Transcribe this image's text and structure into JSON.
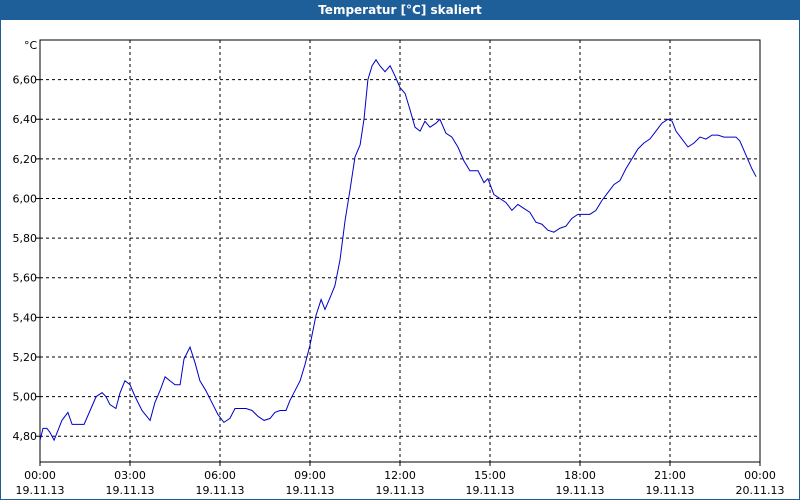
{
  "chart_data": {
    "type": "line",
    "title": "Temperatur [°C] skaliert",
    "y_label": "°C",
    "xlim": [
      0,
      24
    ],
    "ylim": [
      4.67,
      6.8
    ],
    "grid": true,
    "xticks": [
      {
        "value": 0,
        "label": "00:00",
        "date": "19.11.13"
      },
      {
        "value": 3,
        "label": "03:00",
        "date": "19.11.13"
      },
      {
        "value": 6,
        "label": "06:00",
        "date": "19.11.13"
      },
      {
        "value": 9,
        "label": "09:00",
        "date": "19.11.13"
      },
      {
        "value": 12,
        "label": "12:00",
        "date": "19.11.13"
      },
      {
        "value": 15,
        "label": "15:00",
        "date": "19.11.13"
      },
      {
        "value": 18,
        "label": "18:00",
        "date": "19.11.13"
      },
      {
        "value": 21,
        "label": "21:00",
        "date": "19.11.13"
      },
      {
        "value": 24,
        "label": "00:00",
        "date": "20.11.13"
      }
    ],
    "yticks": [
      {
        "value": 4.8,
        "label": "4,80"
      },
      {
        "value": 5.0,
        "label": "5,00"
      },
      {
        "value": 5.2,
        "label": "5,20"
      },
      {
        "value": 5.4,
        "label": "5,40"
      },
      {
        "value": 5.6,
        "label": "5,60"
      },
      {
        "value": 5.8,
        "label": "5,80"
      },
      {
        "value": 6.0,
        "label": "6,00"
      },
      {
        "value": 6.2,
        "label": "6,20"
      },
      {
        "value": 6.4,
        "label": "6,40"
      },
      {
        "value": 6.6,
        "label": "6,60"
      }
    ],
    "x": [
      0,
      0.1,
      0.23,
      0.33,
      0.47,
      0.6,
      0.73,
      0.93,
      1.07,
      1.27,
      1.47,
      1.67,
      1.87,
      2.07,
      2.2,
      2.33,
      2.53,
      2.67,
      2.83,
      3,
      3.17,
      3.4,
      3.67,
      3.83,
      4,
      4.17,
      4.33,
      4.5,
      4.67,
      4.8,
      5,
      5.17,
      5.33,
      5.53,
      5.73,
      5.93,
      6.13,
      6.33,
      6.5,
      6.67,
      6.87,
      7.07,
      7.27,
      7.47,
      7.67,
      7.83,
      8,
      8.2,
      8.33,
      8.5,
      8.67,
      8.83,
      9,
      9.2,
      9.37,
      9.5,
      9.67,
      9.83,
      10,
      10.17,
      10.33,
      10.5,
      10.67,
      10.8,
      10.93,
      11.07,
      11.2,
      11.33,
      11.5,
      11.67,
      11.83,
      12,
      12.17,
      12.33,
      12.5,
      12.67,
      12.83,
      13,
      13.2,
      13.33,
      13.53,
      13.73,
      13.93,
      14.13,
      14.33,
      14.6,
      14.8,
      14.93,
      15.13,
      15.33,
      15.53,
      15.73,
      15.93,
      16.13,
      16.33,
      16.53,
      16.73,
      16.93,
      17.13,
      17.33,
      17.53,
      17.73,
      17.93,
      18.13,
      18.33,
      18.53,
      18.73,
      18.93,
      19.13,
      19.33,
      19.53,
      19.73,
      19.93,
      20.13,
      20.33,
      20.53,
      20.73,
      20.93,
      21.07,
      21.2,
      21.4,
      21.6,
      21.8,
      22,
      22.2,
      22.4,
      22.6,
      22.8,
      23,
      23.2,
      23.33,
      23.53,
      23.73,
      23.87
    ],
    "series": [
      {
        "color": "#0000c8",
        "values": [
          4.78,
          4.84,
          4.84,
          4.82,
          4.78,
          4.83,
          4.88,
          4.92,
          4.86,
          4.86,
          4.86,
          4.93,
          5.0,
          5.02,
          5.0,
          4.96,
          4.94,
          5.02,
          5.08,
          5.06,
          5.0,
          4.93,
          4.88,
          4.97,
          5.03,
          5.1,
          5.08,
          5.06,
          5.06,
          5.19,
          5.25,
          5.17,
          5.08,
          5.03,
          4.97,
          4.91,
          4.87,
          4.89,
          4.94,
          4.94,
          4.94,
          4.93,
          4.9,
          4.88,
          4.89,
          4.92,
          4.93,
          4.93,
          4.98,
          5.03,
          5.08,
          5.16,
          5.26,
          5.41,
          5.49,
          5.44,
          5.5,
          5.56,
          5.69,
          5.89,
          6.04,
          6.21,
          6.27,
          6.4,
          6.6,
          6.67,
          6.7,
          6.67,
          6.64,
          6.67,
          6.62,
          6.56,
          6.53,
          6.45,
          6.36,
          6.34,
          6.39,
          6.36,
          6.38,
          6.4,
          6.33,
          6.31,
          6.26,
          6.19,
          6.14,
          6.14,
          6.08,
          6.1,
          6.02,
          6.0,
          5.98,
          5.94,
          5.97,
          5.95,
          5.93,
          5.88,
          5.87,
          5.84,
          5.83,
          5.85,
          5.86,
          5.9,
          5.92,
          5.92,
          5.92,
          5.94,
          5.99,
          6.03,
          6.07,
          6.09,
          6.15,
          6.2,
          6.25,
          6.28,
          6.3,
          6.34,
          6.38,
          6.4,
          6.39,
          6.34,
          6.3,
          6.26,
          6.28,
          6.31,
          6.3,
          6.32,
          6.32,
          6.31,
          6.31,
          6.31,
          6.29,
          6.22,
          6.15,
          6.11
        ]
      }
    ]
  }
}
